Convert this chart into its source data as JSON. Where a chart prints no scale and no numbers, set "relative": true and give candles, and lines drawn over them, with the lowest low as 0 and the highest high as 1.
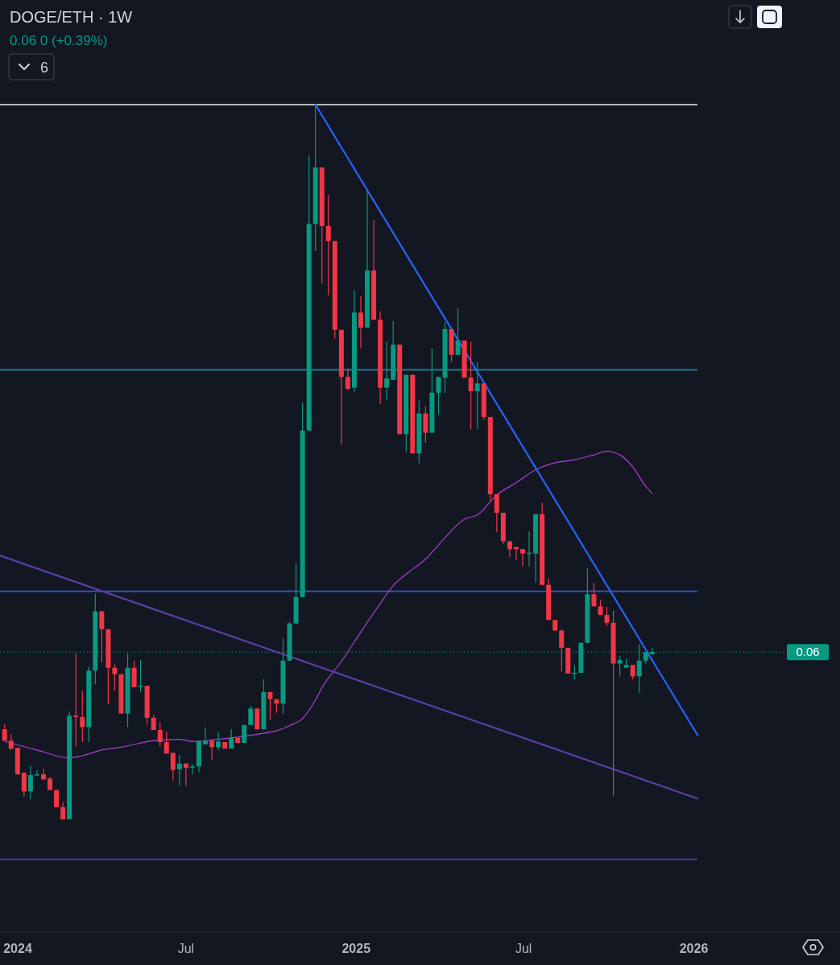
{
  "chart_data": {
    "type": "candlestick",
    "title": "DOGE/ETH · 1W",
    "relative": true,
    "tick_labels": "x",
    "annotations": [
      "0.06  0 (+0.39%)",
      "6",
      "0.06"
    ],
    "xlim": [
      "2023-12-13",
      "2026-06-08"
    ],
    "xticks": [
      {
        "value": "2024-01-01",
        "label": "2024"
      },
      {
        "value": "2024-07-01",
        "label": "Jul"
      },
      {
        "value": "2025-01-01",
        "label": "2025"
      },
      {
        "value": "2025-07-01",
        "label": "Jul"
      },
      {
        "value": "2026-01-01",
        "label": "2026"
      }
    ],
    "x": [
      "2023-12-18",
      "2023-12-25",
      "2024-01-01",
      "2024-01-08",
      "2024-01-15",
      "2024-01-22",
      "2024-01-29",
      "2024-02-05",
      "2024-02-12",
      "2024-02-19",
      "2024-02-26",
      "2024-03-04",
      "2024-03-11",
      "2024-03-18",
      "2024-03-25",
      "2024-04-01",
      "2024-04-08",
      "2024-04-15",
      "2024-04-22",
      "2024-04-29",
      "2024-05-06",
      "2024-05-13",
      "2024-05-20",
      "2024-05-27",
      "2024-06-03",
      "2024-06-10",
      "2024-06-17",
      "2024-06-24",
      "2024-07-01",
      "2024-07-08",
      "2024-07-15",
      "2024-07-22",
      "2024-07-29",
      "2024-08-05",
      "2024-08-12",
      "2024-08-19",
      "2024-08-26",
      "2024-09-02",
      "2024-09-09",
      "2024-09-16",
      "2024-09-23",
      "2024-09-30",
      "2024-10-07",
      "2024-10-14",
      "2024-10-21",
      "2024-10-28",
      "2024-11-04",
      "2024-11-11",
      "2024-11-18",
      "2024-11-25",
      "2024-12-02",
      "2024-12-09",
      "2024-12-16",
      "2024-12-23",
      "2024-12-30",
      "2025-01-06",
      "2025-01-13",
      "2025-01-20",
      "2025-01-27",
      "2025-02-03",
      "2025-02-10",
      "2025-02-17",
      "2025-02-24",
      "2025-03-03",
      "2025-03-10",
      "2025-03-17",
      "2025-03-24",
      "2025-03-31",
      "2025-04-07",
      "2025-04-14",
      "2025-04-21",
      "2025-04-28",
      "2025-05-05",
      "2025-05-12",
      "2025-05-19",
      "2025-05-26",
      "2025-06-02",
      "2025-06-09",
      "2025-06-16",
      "2025-06-23",
      "2025-06-30",
      "2025-07-07",
      "2025-07-14",
      "2025-07-21",
      "2025-07-28",
      "2025-08-04",
      "2025-08-11",
      "2025-08-18",
      "2025-08-25",
      "2025-09-01",
      "2025-09-08",
      "2025-09-15",
      "2025-09-22",
      "2025-09-29",
      "2025-10-06",
      "2025-10-13",
      "2025-10-20",
      "2025-10-27",
      "2025-11-03",
      "2025-11-10",
      "2025-11-17"
    ],
    "ohlc": [
      [
        0.126,
        0.133,
        0.11,
        0.11
      ],
      [
        0.11,
        0.119,
        0.097,
        0.099
      ],
      [
        0.1,
        0.1,
        0.062,
        0.063
      ],
      [
        0.065,
        0.066,
        0.032,
        0.039
      ],
      [
        0.039,
        0.075,
        0.028,
        0.062
      ],
      [
        0.062,
        0.069,
        0.061,
        0.063
      ],
      [
        0.063,
        0.071,
        0.055,
        0.056
      ],
      [
        0.057,
        0.059,
        0.041,
        0.041
      ],
      [
        0.041,
        0.041,
        0.017,
        0.017
      ],
      [
        0.017,
        0.024,
        0,
        0
      ],
      [
        0,
        0.151,
        0,
        0.145
      ],
      [
        0.145,
        0.232,
        0.102,
        0.143
      ],
      [
        0.143,
        0.18,
        0.108,
        0.129
      ],
      [
        0.129,
        0.214,
        0.108,
        0.208
      ],
      [
        0.208,
        0.316,
        0.189,
        0.291
      ],
      [
        0.291,
        0.291,
        0.22,
        0.266
      ],
      [
        0.266,
        0.266,
        0.161,
        0.212
      ],
      [
        0.212,
        0.217,
        0.18,
        0.203
      ],
      [
        0.203,
        0.203,
        0.148,
        0.148
      ],
      [
        0.148,
        0.232,
        0.129,
        0.212
      ],
      [
        0.212,
        0.222,
        0.185,
        0.185
      ],
      [
        0.186,
        0.223,
        0.178,
        0.187
      ],
      [
        0.187,
        0.187,
        0.132,
        0.142
      ],
      [
        0.142,
        0.146,
        0.125,
        0.125
      ],
      [
        0.125,
        0.136,
        0.102,
        0.108
      ],
      [
        0.108,
        0.123,
        0.092,
        0.092
      ],
      [
        0.093,
        0.093,
        0.054,
        0.069
      ],
      [
        0.07,
        0.09,
        0.047,
        0.078
      ],
      [
        0.078,
        0.078,
        0.047,
        0.072
      ],
      [
        0.073,
        0.077,
        0.063,
        0.074
      ],
      [
        0.074,
        0.11,
        0.066,
        0.11
      ],
      [
        0.105,
        0.129,
        0.105,
        0.11
      ],
      [
        0.11,
        0.11,
        0.083,
        0.101
      ],
      [
        0.101,
        0.122,
        0.097,
        0.109
      ],
      [
        0.108,
        0.108,
        0.099,
        0.099
      ],
      [
        0.099,
        0.126,
        0.099,
        0.114
      ],
      [
        0.114,
        0.114,
        0.107,
        0.107
      ],
      [
        0.107,
        0.132,
        0.107,
        0.132
      ],
      [
        0.132,
        0.159,
        0.132,
        0.155
      ],
      [
        0.155,
        0.155,
        0.126,
        0.126
      ],
      [
        0.126,
        0.196,
        0.126,
        0.178
      ],
      [
        0.178,
        0.178,
        0.139,
        0.168
      ],
      [
        0.168,
        0.168,
        0.149,
        0.162
      ],
      [
        0.162,
        0.253,
        0.148,
        0.222
      ],
      [
        0.222,
        0.276,
        0.222,
        0.274
      ],
      [
        0.274,
        0.359,
        0.274,
        0.311
      ],
      [
        0.311,
        0.583,
        0.311,
        0.544
      ],
      [
        0.544,
        0.929,
        0.544,
        0.833
      ],
      [
        0.833,
        1,
        0.795,
        0.912
      ],
      [
        0.912,
        0.912,
        0.75,
        0.83
      ],
      [
        0.83,
        0.874,
        0.733,
        0.809
      ],
      [
        0.809,
        0.809,
        0.673,
        0.685
      ],
      [
        0.685,
        0.685,
        0.524,
        0.619
      ],
      [
        0.619,
        0.631,
        0.602,
        0.602
      ],
      [
        0.604,
        0.741,
        0.598,
        0.709
      ],
      [
        0.709,
        0.732,
        0.659,
        0.688
      ],
      [
        0.688,
        0.882,
        0.688,
        0.768
      ],
      [
        0.768,
        0.839,
        0.699,
        0.699
      ],
      [
        0.699,
        0.711,
        0.581,
        0.604
      ],
      [
        0.604,
        0.668,
        0.587,
        0.617
      ],
      [
        0.615,
        0.697,
        0.615,
        0.664
      ],
      [
        0.664,
        0.664,
        0.539,
        0.539
      ],
      [
        0.539,
        0.622,
        0.514,
        0.622
      ],
      [
        0.622,
        0.622,
        0.512,
        0.512
      ],
      [
        0.512,
        0.586,
        0.498,
        0.568
      ],
      [
        0.568,
        0.578,
        0.527,
        0.541
      ],
      [
        0.541,
        0.659,
        0.541,
        0.597
      ],
      [
        0.597,
        0.619,
        0.566,
        0.619
      ],
      [
        0.618,
        0.696,
        0.597,
        0.686
      ],
      [
        0.686,
        0.686,
        0.64,
        0.65
      ],
      [
        0.65,
        0.715,
        0.65,
        0.67
      ],
      [
        0.67,
        0.67,
        0.618,
        0.618
      ],
      [
        0.618,
        0.668,
        0.546,
        0.599
      ],
      [
        0.599,
        0.64,
        0.546,
        0.61
      ],
      [
        0.61,
        0.61,
        0.559,
        0.563
      ],
      [
        0.563,
        0.563,
        0.444,
        0.455
      ],
      [
        0.455,
        0.455,
        0.402,
        0.429
      ],
      [
        0.429,
        0.429,
        0.385,
        0.389
      ],
      [
        0.389,
        0.389,
        0.367,
        0.378
      ],
      [
        0.381,
        0.381,
        0.363,
        0.378
      ],
      [
        0.378,
        0.378,
        0.354,
        0.372
      ],
      [
        0.372,
        0.403,
        0.354,
        0.373
      ],
      [
        0.372,
        0.427,
        0.331,
        0.427
      ],
      [
        0.427,
        0.443,
        0.328,
        0.328
      ],
      [
        0.328,
        0.337,
        0.279,
        0.279
      ],
      [
        0.279,
        0.279,
        0.264,
        0.264
      ],
      [
        0.264,
        0.266,
        0.207,
        0.24
      ],
      [
        0.24,
        0.24,
        0.204,
        0.204
      ],
      [
        0.204,
        0.216,
        0.196,
        0.205
      ],
      [
        0.205,
        0.247,
        0.205,
        0.247
      ],
      [
        0.247,
        0.351,
        0.247,
        0.315
      ],
      [
        0.315,
        0.331,
        0.298,
        0.298
      ],
      [
        0.298,
        0.307,
        0.286,
        0.286
      ],
      [
        0.286,
        0.297,
        0.27,
        0.275
      ],
      [
        0.275,
        0.292,
        0.033,
        0.218
      ],
      [
        0.218,
        0.229,
        0.2,
        0.223
      ],
      [
        0.212,
        0.225,
        0.212,
        0.216
      ],
      [
        0.216,
        0.216,
        0.196,
        0.2
      ],
      [
        0.2,
        0.245,
        0.177,
        0.222
      ],
      [
        0.222,
        0.234,
        0.218,
        0.234
      ],
      [
        0.231,
        0.24,
        0.231,
        0.234
      ]
    ],
    "colors": [
      "#f23645",
      "#f23645",
      "#f23645",
      "#f23645",
      "#089981",
      "#089981",
      "#f23645",
      "#f23645",
      "#f23645",
      "#f23645",
      "#089981",
      "#f23645",
      "#f23645",
      "#089981",
      "#089981",
      "#f23645",
      "#f23645",
      "#f23645",
      "#f23645",
      "#089981",
      "#f23645",
      "#089981",
      "#f23645",
      "#f23645",
      "#f23645",
      "#f23645",
      "#f23645",
      "#089981",
      "#f23645",
      "#089981",
      "#089981",
      "#089981",
      "#f23645",
      "#089981",
      "#f23645",
      "#089981",
      "#f23645",
      "#089981",
      "#089981",
      "#f23645",
      "#089981",
      "#f23645",
      "#f23645",
      "#089981",
      "#089981",
      "#089981",
      "#089981",
      "#089981",
      "#089981",
      "#f23645",
      "#f23645",
      "#f23645",
      "#f23645",
      "#f23645",
      "#089981",
      "#f23645",
      "#089981",
      "#f23645",
      "#f23645",
      "#089981",
      "#089981",
      "#f23645",
      "#089981",
      "#f23645",
      "#089981",
      "#f23645",
      "#089981",
      "#089981",
      "#089981",
      "#f23645",
      "#089981",
      "#f23645",
      "#f23645",
      "#089981",
      "#f23645",
      "#f23645",
      "#f23645",
      "#f23645",
      "#f23645",
      "#f23645",
      "#f23645",
      "#089981",
      "#089981",
      "#f23645",
      "#f23645",
      "#f23645",
      "#f23645",
      "#f23645",
      "#089981",
      "#089981",
      "#089981",
      "#f23645",
      "#f23645",
      "#f23645",
      "#f23645",
      "#089981",
      "#089981",
      "#f23645",
      "#089981",
      "#089981",
      "#089981"
    ],
    "series": [
      {
        "type": "line",
        "color": "#a93fd1",
        "x": [
          "2023-12-18",
          "2024-01-22",
          "2024-02-26",
          "2024-03-11",
          "2024-04-01",
          "2024-04-22",
          "2024-05-27",
          "2024-06-24",
          "2024-07-08",
          "2024-08-12",
          "2024-09-16",
          "2024-10-07",
          "2024-10-21",
          "2024-11-04",
          "2024-11-18",
          "2024-11-25",
          "2024-12-16",
          "2025-01-06",
          "2025-01-27",
          "2025-02-10",
          "2025-02-24",
          "2025-03-17",
          "2025-04-07",
          "2025-04-28",
          "2025-05-12",
          "2025-06-02",
          "2025-06-23",
          "2025-07-14",
          "2025-08-04",
          "2025-08-25",
          "2025-09-15",
          "2025-09-29",
          "2025-10-13",
          "2025-10-27",
          "2025-11-10",
          "2025-11-17"
        ],
        "values": [
          0.109,
          0.097,
          0.086,
          0.089,
          0.097,
          0.101,
          0.11,
          0.112,
          0.109,
          0.113,
          0.119,
          0.124,
          0.131,
          0.141,
          0.167,
          0.184,
          0.221,
          0.262,
          0.302,
          0.327,
          0.343,
          0.364,
          0.394,
          0.42,
          0.426,
          0.454,
          0.471,
          0.489,
          0.499,
          0.503,
          0.51,
          0.515,
          0.51,
          0.493,
          0.466,
          0.456
        ]
      },
      {
        "type": "line",
        "color": "#2962ff",
        "x": [
          "2024-11-18",
          "2026-01-05"
        ],
        "values": [
          1,
          0.118
        ]
      },
      {
        "type": "line",
        "color": "#5b3fa8",
        "x": [
          "2023-12-13",
          "2026-01-05"
        ],
        "values": [
          0.369,
          0.029
        ]
      }
    ],
    "ref_lines": [
      {
        "axis": "y",
        "value": 1,
        "color": "#b2b5be"
      },
      {
        "axis": "y",
        "value": 0.629,
        "color": "#1b7a8c"
      },
      {
        "axis": "y",
        "value": 0.319,
        "color": "#2f4fc4"
      },
      {
        "axis": "y",
        "value": -0.056,
        "color": "#4b3a93"
      },
      {
        "axis": "y",
        "value": 0.234,
        "color": "#089981",
        "line_style": "dotted"
      }
    ]
  }
}
